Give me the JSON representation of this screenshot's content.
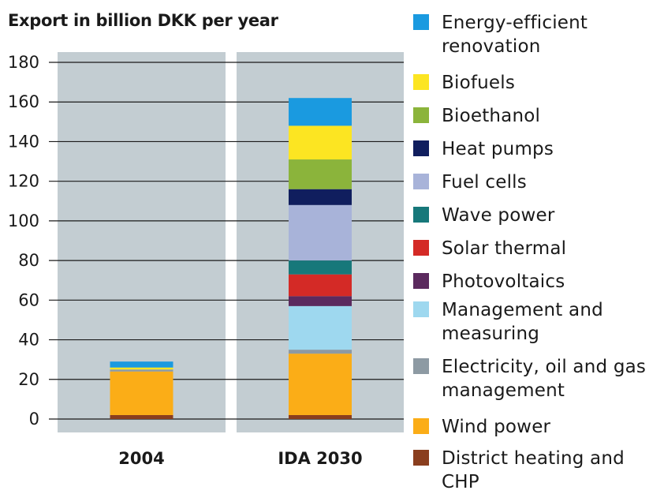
{
  "chart_data": {
    "type": "bar",
    "stacked": true,
    "title": "Export in billion DKK per year",
    "xlabel": "",
    "ylabel": "",
    "ylim": [
      0,
      180
    ],
    "yticks": [
      0,
      20,
      40,
      60,
      80,
      100,
      120,
      140,
      160,
      180
    ],
    "grid": true,
    "legend_position": "right",
    "categories": [
      "2004",
      "IDA 2030"
    ],
    "series": [
      {
        "name": "District heating and CHP",
        "color": "#8a3e1e",
        "values": [
          2,
          2
        ]
      },
      {
        "name": "Wind power",
        "color": "#fbad17",
        "values": [
          22,
          31
        ]
      },
      {
        "name": "Electricity, oil and gas management",
        "color": "#8d9aa3",
        "values": [
          1,
          2
        ]
      },
      {
        "name": "Management and measuring",
        "color": "#9ed8ef",
        "values": [
          0,
          22
        ]
      },
      {
        "name": "Photovoltaics",
        "color": "#5b2a5e",
        "values": [
          0,
          5
        ]
      },
      {
        "name": "Solar thermal",
        "color": "#d42a26",
        "values": [
          0,
          11
        ]
      },
      {
        "name": "Wave power",
        "color": "#17787a",
        "values": [
          0,
          7
        ]
      },
      {
        "name": "Fuel cells",
        "color": "#a8b3d9",
        "values": [
          0,
          28
        ]
      },
      {
        "name": "Heat pumps",
        "color": "#101e5e",
        "values": [
          0,
          8
        ]
      },
      {
        "name": "Bioethanol",
        "color": "#8bb43b",
        "values": [
          0,
          15
        ]
      },
      {
        "name": "Biofuels",
        "color": "#fce522",
        "values": [
          1,
          17
        ]
      },
      {
        "name": "Energy-efficient renovation",
        "color": "#1a9ae0",
        "values": [
          3,
          14
        ]
      }
    ],
    "plot_background": "#c3cdd2",
    "gridline_color": "#1a1a1a"
  },
  "legend": {
    "items": [
      {
        "label": "Energy-efficient renovation",
        "color": "#1a9ae0"
      },
      {
        "label": "Biofuels",
        "color": "#fce522"
      },
      {
        "label": "Bioethanol",
        "color": "#8bb43b"
      },
      {
        "label": "Heat pumps",
        "color": "#101e5e"
      },
      {
        "label": "Fuel cells",
        "color": "#a8b3d9"
      },
      {
        "label": "Wave power",
        "color": "#17787a"
      },
      {
        "label": "Solar thermal",
        "color": "#d42a26"
      },
      {
        "label": "Photovoltaics",
        "color": "#5b2a5e"
      },
      {
        "label": "Management and measuring",
        "color": "#9ed8ef"
      },
      {
        "label": "Electricity, oil and gas management",
        "color": "#8d9aa3"
      },
      {
        "label": "Wind power",
        "color": "#fbad17"
      },
      {
        "label": "District heating and CHP",
        "color": "#8a3e1e"
      }
    ]
  }
}
